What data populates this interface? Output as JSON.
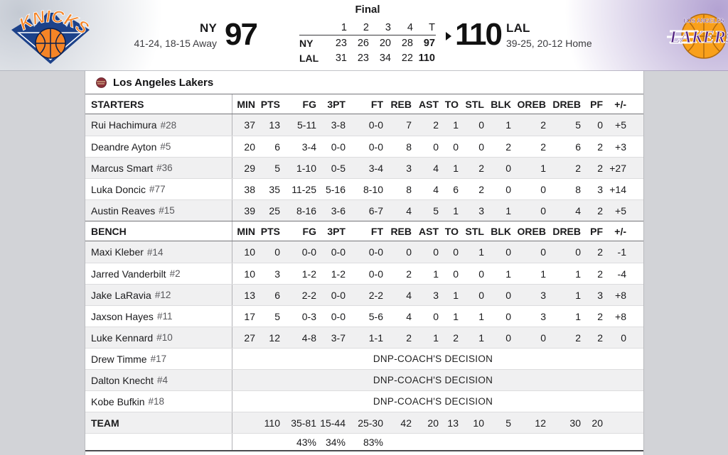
{
  "scoreboard": {
    "status": "Final",
    "away": {
      "abbr": "NY",
      "record": "41-24, 18-15 Away",
      "score": "97",
      "logo": "knicks-logo"
    },
    "home": {
      "abbr": "LAL",
      "record": "39-25, 20-12 Home",
      "score": "110",
      "logo": "lakers-logo"
    },
    "linescore": {
      "periods": [
        "1",
        "2",
        "3",
        "4",
        "T"
      ],
      "rows": [
        {
          "team": "NY",
          "scores": [
            "23",
            "26",
            "20",
            "28",
            "97"
          ]
        },
        {
          "team": "LAL",
          "scores": [
            "31",
            "23",
            "34",
            "22",
            "110"
          ]
        }
      ]
    },
    "winner_indicator": "right-arrow-icon"
  },
  "boxscore": {
    "team_name": "Los Angeles Lakers",
    "columns": [
      "MIN",
      "PTS",
      "FG",
      "3PT",
      "FT",
      "REB",
      "AST",
      "TO",
      "STL",
      "BLK",
      "OREB",
      "DREB",
      "PF",
      "+/-"
    ],
    "starters_label": "STARTERS",
    "bench_label": "BENCH",
    "team_label": "TEAM",
    "dnp_text": "DNP-COACH'S DECISION",
    "starters": [
      {
        "name": "Rui Hachimura",
        "number": "#28",
        "stats": [
          "37",
          "13",
          "5-11",
          "3-8",
          "0-0",
          "7",
          "2",
          "1",
          "0",
          "1",
          "2",
          "5",
          "0",
          "+5"
        ]
      },
      {
        "name": "Deandre Ayton",
        "number": "#5",
        "stats": [
          "20",
          "6",
          "3-4",
          "0-0",
          "0-0",
          "8",
          "0",
          "0",
          "0",
          "2",
          "2",
          "6",
          "2",
          "+3"
        ]
      },
      {
        "name": "Marcus Smart",
        "number": "#36",
        "stats": [
          "29",
          "5",
          "1-10",
          "0-5",
          "3-4",
          "3",
          "4",
          "1",
          "2",
          "0",
          "1",
          "2",
          "2",
          "+27"
        ]
      },
      {
        "name": "Luka Doncic",
        "number": "#77",
        "stats": [
          "38",
          "35",
          "11-25",
          "5-16",
          "8-10",
          "8",
          "4",
          "6",
          "2",
          "0",
          "0",
          "8",
          "3",
          "+14"
        ]
      },
      {
        "name": "Austin Reaves",
        "number": "#15",
        "stats": [
          "39",
          "25",
          "8-16",
          "3-6",
          "6-7",
          "4",
          "5",
          "1",
          "3",
          "1",
          "0",
          "4",
          "2",
          "+5"
        ]
      }
    ],
    "bench": [
      {
        "name": "Maxi Kleber",
        "number": "#14",
        "stats": [
          "10",
          "0",
          "0-0",
          "0-0",
          "0-0",
          "0",
          "0",
          "0",
          "1",
          "0",
          "0",
          "0",
          "2",
          "-1"
        ]
      },
      {
        "name": "Jarred Vanderbilt",
        "number": "#2",
        "stats": [
          "10",
          "3",
          "1-2",
          "1-2",
          "0-0",
          "2",
          "1",
          "0",
          "0",
          "1",
          "1",
          "1",
          "2",
          "-4"
        ]
      },
      {
        "name": "Jake LaRavia",
        "number": "#12",
        "stats": [
          "13",
          "6",
          "2-2",
          "0-0",
          "2-2",
          "4",
          "3",
          "1",
          "0",
          "0",
          "3",
          "1",
          "3",
          "+8"
        ]
      },
      {
        "name": "Jaxson Hayes",
        "number": "#11",
        "stats": [
          "17",
          "5",
          "0-3",
          "0-0",
          "5-6",
          "4",
          "0",
          "1",
          "1",
          "0",
          "3",
          "1",
          "2",
          "+8"
        ]
      },
      {
        "name": "Luke Kennard",
        "number": "#10",
        "stats": [
          "27",
          "12",
          "4-8",
          "3-7",
          "1-1",
          "2",
          "1",
          "2",
          "1",
          "0",
          "0",
          "2",
          "2",
          "0"
        ]
      }
    ],
    "dnp": [
      {
        "name": "Drew Timme",
        "number": "#17"
      },
      {
        "name": "Dalton Knecht",
        "number": "#4"
      },
      {
        "name": "Kobe Bufkin",
        "number": "#18"
      }
    ],
    "team_totals": [
      "",
      "110",
      "35-81",
      "15-44",
      "25-30",
      "42",
      "20",
      "13",
      "10",
      "5",
      "12",
      "30",
      "20",
      ""
    ],
    "percentages": [
      "",
      "",
      "43%",
      "34%",
      "83%",
      "",
      "",
      "",
      "",
      "",
      "",
      "",
      "",
      ""
    ]
  },
  "colors": {
    "knicks_blue": "#1d428a",
    "knicks_orange": "#f58426",
    "lakers_purple": "#552583",
    "lakers_gold": "#f9a01b",
    "row_alt": "#f0f0f1",
    "page_gray": "#d2d3d7"
  }
}
